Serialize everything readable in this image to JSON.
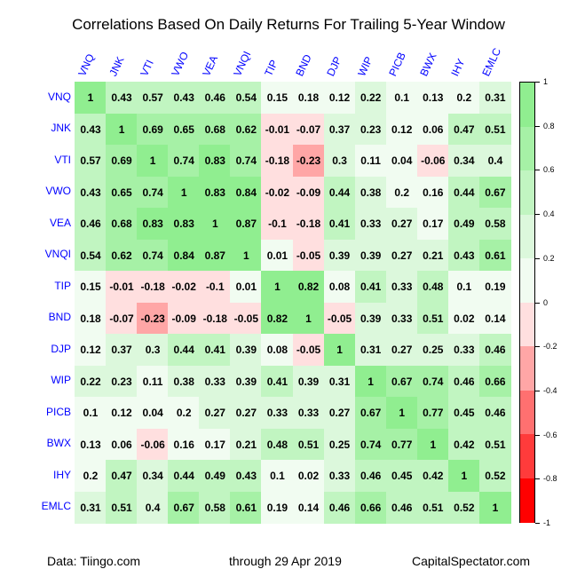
{
  "chart_data": {
    "type": "heatmap",
    "title": "Correlations Based On Daily Returns For Trailing 5-Year Window",
    "xlabel": "",
    "ylabel": "",
    "labels": [
      "VNQ",
      "JNK",
      "VTI",
      "VWO",
      "VEA",
      "VNQI",
      "TIP",
      "BND",
      "DJP",
      "WIP",
      "PICB",
      "BWX",
      "IHY",
      "EMLC"
    ],
    "matrix": [
      [
        1,
        0.43,
        0.57,
        0.43,
        0.46,
        0.54,
        0.15,
        0.18,
        0.12,
        0.22,
        0.1,
        0.13,
        0.2,
        0.31
      ],
      [
        0.43,
        1,
        0.69,
        0.65,
        0.68,
        0.62,
        -0.01,
        -0.07,
        0.37,
        0.23,
        0.12,
        0.06,
        0.47,
        0.51
      ],
      [
        0.57,
        0.69,
        1,
        0.74,
        0.83,
        0.74,
        -0.18,
        -0.23,
        0.3,
        0.11,
        0.04,
        -0.06,
        0.34,
        0.4
      ],
      [
        0.43,
        0.65,
        0.74,
        1,
        0.83,
        0.84,
        -0.02,
        -0.09,
        0.44,
        0.38,
        0.2,
        0.16,
        0.44,
        0.67
      ],
      [
        0.46,
        0.68,
        0.83,
        0.83,
        1,
        0.87,
        -0.1,
        -0.18,
        0.41,
        0.33,
        0.27,
        0.17,
        0.49,
        0.58
      ],
      [
        0.54,
        0.62,
        0.74,
        0.84,
        0.87,
        1,
        0.01,
        -0.05,
        0.39,
        0.39,
        0.27,
        0.21,
        0.43,
        0.61
      ],
      [
        0.15,
        -0.01,
        -0.18,
        -0.02,
        -0.1,
        0.01,
        1,
        0.82,
        0.08,
        0.41,
        0.33,
        0.48,
        0.1,
        0.19
      ],
      [
        0.18,
        -0.07,
        -0.23,
        -0.09,
        -0.18,
        -0.05,
        0.82,
        1,
        -0.05,
        0.39,
        0.33,
        0.51,
        0.02,
        0.14
      ],
      [
        0.12,
        0.37,
        0.3,
        0.44,
        0.41,
        0.39,
        0.08,
        -0.05,
        1,
        0.31,
        0.27,
        0.25,
        0.33,
        0.46
      ],
      [
        0.22,
        0.23,
        0.11,
        0.38,
        0.33,
        0.39,
        0.41,
        0.39,
        0.31,
        1,
        0.67,
        0.74,
        0.46,
        0.66
      ],
      [
        0.1,
        0.12,
        0.04,
        0.2,
        0.27,
        0.27,
        0.33,
        0.33,
        0.27,
        0.67,
        1,
        0.77,
        0.45,
        0.46
      ],
      [
        0.13,
        0.06,
        -0.06,
        0.16,
        0.17,
        0.21,
        0.48,
        0.51,
        0.25,
        0.74,
        0.77,
        1,
        0.42,
        0.51
      ],
      [
        0.2,
        0.47,
        0.34,
        0.44,
        0.49,
        0.43,
        0.1,
        0.02,
        0.33,
        0.46,
        0.45,
        0.42,
        1,
        0.52
      ],
      [
        0.31,
        0.51,
        0.4,
        0.67,
        0.58,
        0.61,
        0.19,
        0.14,
        0.46,
        0.66,
        0.46,
        0.51,
        0.52,
        1
      ]
    ],
    "colorbar": {
      "range": [
        -1,
        1
      ],
      "ticks": [
        "1",
        "0.8",
        "0.6",
        "0.4",
        "0.2",
        "0",
        "-0.2",
        "-0.4",
        "-0.6",
        "-0.8",
        "-1"
      ],
      "bins": [
        {
          "min": 0.8,
          "max": 1.0,
          "color": "#90EE90"
        },
        {
          "min": 0.6,
          "max": 0.8,
          "color": "#A6F1A6"
        },
        {
          "min": 0.4,
          "max": 0.6,
          "color": "#C1F5C1"
        },
        {
          "min": 0.2,
          "max": 0.4,
          "color": "#DCF8DC"
        },
        {
          "min": 0.0,
          "max": 0.2,
          "color": "#F1FCF1"
        },
        {
          "min": -0.2,
          "max": 0.0,
          "color": "#FFDFDF"
        },
        {
          "min": -0.4,
          "max": -0.2,
          "color": "#FFA6A6"
        },
        {
          "min": -0.6,
          "max": -0.4,
          "color": "#FF7070"
        },
        {
          "min": -0.8,
          "max": -0.6,
          "color": "#FF3B3B"
        },
        {
          "min": -1.0,
          "max": -0.8,
          "color": "#FF0000"
        }
      ]
    },
    "label_color": "#0000FF",
    "grid": false,
    "legend_position": "right"
  },
  "footer": {
    "source": "Data: Tiingo.com",
    "date": "through 29 Apr 2019",
    "brand": "CapitalSpectator.com"
  }
}
